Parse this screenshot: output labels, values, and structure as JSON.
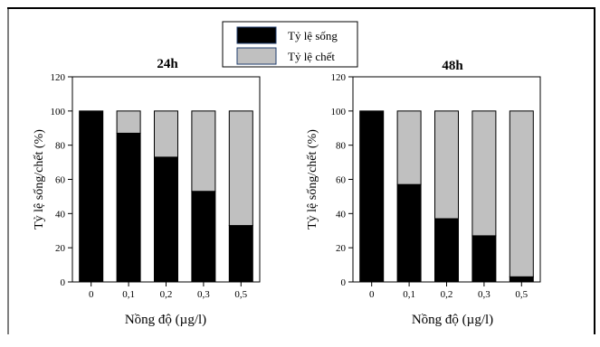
{
  "legend": {
    "items": [
      {
        "label": "Tỷ lệ sống",
        "color": "#000000"
      },
      {
        "label": "Tỷ lệ chết",
        "color": "#c0c0c0"
      }
    ]
  },
  "colors": {
    "alive": "#000000",
    "dead": "#c0c0c0",
    "frame": "#000000"
  },
  "chart_data": [
    {
      "type": "bar",
      "stacked": true,
      "title": "24h",
      "xlabel": "Nồng độ (µg/l)",
      "ylabel": "Tỷ lệ sống/chết (%)",
      "ylim": [
        0,
        120
      ],
      "yticks": [
        0,
        20,
        40,
        60,
        80,
        100,
        120
      ],
      "categories": [
        "0",
        "0,1",
        "0,2",
        "0,3",
        "0,5"
      ],
      "series": [
        {
          "name": "Tỷ lệ sống",
          "values": [
            100,
            87,
            73,
            53,
            33
          ]
        },
        {
          "name": "Tỷ lệ chết",
          "values": [
            0,
            13,
            27,
            47,
            67
          ]
        }
      ]
    },
    {
      "type": "bar",
      "stacked": true,
      "title": "48h",
      "xlabel": "Nồng độ (µg/l)",
      "ylabel": "Tỷ lệ sống/chết (%)",
      "ylim": [
        0,
        120
      ],
      "yticks": [
        0,
        20,
        40,
        60,
        80,
        100,
        120
      ],
      "categories": [
        "0",
        "0,1",
        "0,2",
        "0,3",
        "0,5"
      ],
      "series": [
        {
          "name": "Tỷ lệ sống",
          "values": [
            100,
            57,
            37,
            27,
            3
          ]
        },
        {
          "name": "Tỷ lệ chết",
          "values": [
            0,
            43,
            63,
            73,
            97
          ]
        }
      ]
    }
  ]
}
